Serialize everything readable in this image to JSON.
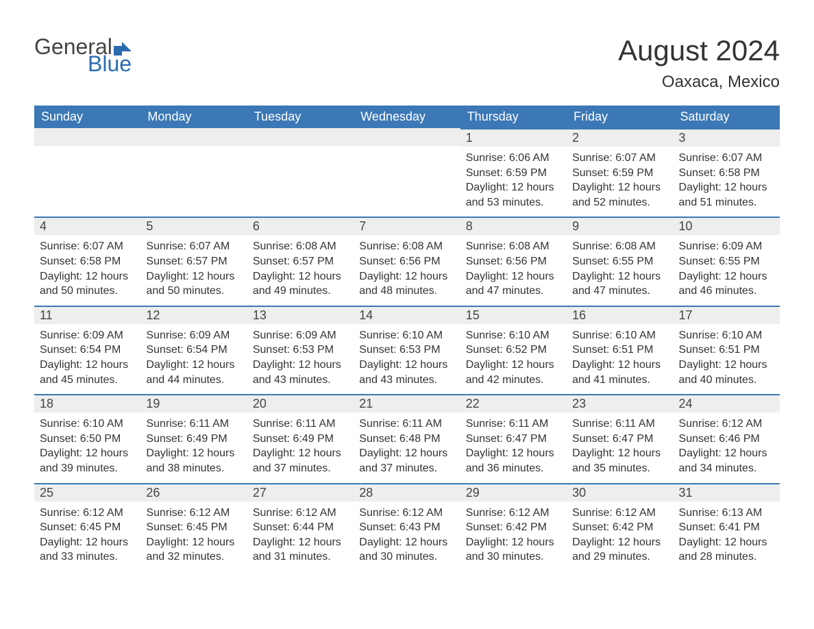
{
  "brand": {
    "word1": "General",
    "word2": "Blue",
    "word1_color": "#444444",
    "word2_color": "#2b6cb0",
    "flag_color": "#2b6cb0"
  },
  "title": "August 2024",
  "subtitle": "Oaxaca, Mexico",
  "colors": {
    "header_bg": "#3b78b5",
    "header_text": "#ffffff",
    "daynum_bg": "#eeeeee",
    "daynum_text": "#444444",
    "body_text": "#333333",
    "border_top": "#3b78b5",
    "page_bg": "#ffffff"
  },
  "typography": {
    "title_fontsize": 42,
    "subtitle_fontsize": 24,
    "header_fontsize": 18,
    "daynum_fontsize": 18,
    "body_fontsize": 16
  },
  "weekdays": [
    "Sunday",
    "Monday",
    "Tuesday",
    "Wednesday",
    "Thursday",
    "Friday",
    "Saturday"
  ],
  "weeks": [
    [
      null,
      null,
      null,
      null,
      {
        "n": "1",
        "sunrise": "6:06 AM",
        "sunset": "6:59 PM",
        "daylight": "12 hours and 53 minutes."
      },
      {
        "n": "2",
        "sunrise": "6:07 AM",
        "sunset": "6:59 PM",
        "daylight": "12 hours and 52 minutes."
      },
      {
        "n": "3",
        "sunrise": "6:07 AM",
        "sunset": "6:58 PM",
        "daylight": "12 hours and 51 minutes."
      }
    ],
    [
      {
        "n": "4",
        "sunrise": "6:07 AM",
        "sunset": "6:58 PM",
        "daylight": "12 hours and 50 minutes."
      },
      {
        "n": "5",
        "sunrise": "6:07 AM",
        "sunset": "6:57 PM",
        "daylight": "12 hours and 50 minutes."
      },
      {
        "n": "6",
        "sunrise": "6:08 AM",
        "sunset": "6:57 PM",
        "daylight": "12 hours and 49 minutes."
      },
      {
        "n": "7",
        "sunrise": "6:08 AM",
        "sunset": "6:56 PM",
        "daylight": "12 hours and 48 minutes."
      },
      {
        "n": "8",
        "sunrise": "6:08 AM",
        "sunset": "6:56 PM",
        "daylight": "12 hours and 47 minutes."
      },
      {
        "n": "9",
        "sunrise": "6:08 AM",
        "sunset": "6:55 PM",
        "daylight": "12 hours and 47 minutes."
      },
      {
        "n": "10",
        "sunrise": "6:09 AM",
        "sunset": "6:55 PM",
        "daylight": "12 hours and 46 minutes."
      }
    ],
    [
      {
        "n": "11",
        "sunrise": "6:09 AM",
        "sunset": "6:54 PM",
        "daylight": "12 hours and 45 minutes."
      },
      {
        "n": "12",
        "sunrise": "6:09 AM",
        "sunset": "6:54 PM",
        "daylight": "12 hours and 44 minutes."
      },
      {
        "n": "13",
        "sunrise": "6:09 AM",
        "sunset": "6:53 PM",
        "daylight": "12 hours and 43 minutes."
      },
      {
        "n": "14",
        "sunrise": "6:10 AM",
        "sunset": "6:53 PM",
        "daylight": "12 hours and 43 minutes."
      },
      {
        "n": "15",
        "sunrise": "6:10 AM",
        "sunset": "6:52 PM",
        "daylight": "12 hours and 42 minutes."
      },
      {
        "n": "16",
        "sunrise": "6:10 AM",
        "sunset": "6:51 PM",
        "daylight": "12 hours and 41 minutes."
      },
      {
        "n": "17",
        "sunrise": "6:10 AM",
        "sunset": "6:51 PM",
        "daylight": "12 hours and 40 minutes."
      }
    ],
    [
      {
        "n": "18",
        "sunrise": "6:10 AM",
        "sunset": "6:50 PM",
        "daylight": "12 hours and 39 minutes."
      },
      {
        "n": "19",
        "sunrise": "6:11 AM",
        "sunset": "6:49 PM",
        "daylight": "12 hours and 38 minutes."
      },
      {
        "n": "20",
        "sunrise": "6:11 AM",
        "sunset": "6:49 PM",
        "daylight": "12 hours and 37 minutes."
      },
      {
        "n": "21",
        "sunrise": "6:11 AM",
        "sunset": "6:48 PM",
        "daylight": "12 hours and 37 minutes."
      },
      {
        "n": "22",
        "sunrise": "6:11 AM",
        "sunset": "6:47 PM",
        "daylight": "12 hours and 36 minutes."
      },
      {
        "n": "23",
        "sunrise": "6:11 AM",
        "sunset": "6:47 PM",
        "daylight": "12 hours and 35 minutes."
      },
      {
        "n": "24",
        "sunrise": "6:12 AM",
        "sunset": "6:46 PM",
        "daylight": "12 hours and 34 minutes."
      }
    ],
    [
      {
        "n": "25",
        "sunrise": "6:12 AM",
        "sunset": "6:45 PM",
        "daylight": "12 hours and 33 minutes."
      },
      {
        "n": "26",
        "sunrise": "6:12 AM",
        "sunset": "6:45 PM",
        "daylight": "12 hours and 32 minutes."
      },
      {
        "n": "27",
        "sunrise": "6:12 AM",
        "sunset": "6:44 PM",
        "daylight": "12 hours and 31 minutes."
      },
      {
        "n": "28",
        "sunrise": "6:12 AM",
        "sunset": "6:43 PM",
        "daylight": "12 hours and 30 minutes."
      },
      {
        "n": "29",
        "sunrise": "6:12 AM",
        "sunset": "6:42 PM",
        "daylight": "12 hours and 30 minutes."
      },
      {
        "n": "30",
        "sunrise": "6:12 AM",
        "sunset": "6:42 PM",
        "daylight": "12 hours and 29 minutes."
      },
      {
        "n": "31",
        "sunrise": "6:13 AM",
        "sunset": "6:41 PM",
        "daylight": "12 hours and 28 minutes."
      }
    ]
  ],
  "labels": {
    "sunrise": "Sunrise:",
    "sunset": "Sunset:",
    "daylight": "Daylight:"
  }
}
